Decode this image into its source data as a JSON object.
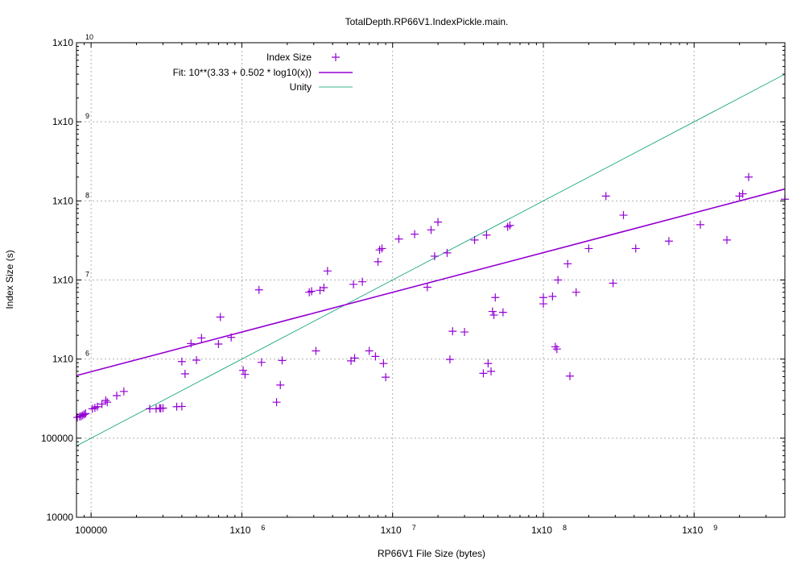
{
  "colors": {
    "data": "#9400d3",
    "fit": "#9400d3",
    "unity": "#009e73",
    "grid": "#b0b0b0",
    "axis": "#000000"
  },
  "chart_data": {
    "type": "scatter",
    "title": "TotalDepth.RP66V1.IndexPickle.main.",
    "xlabel": "RP66V1 File Size (bytes)",
    "ylabel": "Index Size (s)",
    "xscale": "log",
    "yscale": "log",
    "xlim": [
      80000,
      4000000000
    ],
    "ylim": [
      10000,
      10000000000
    ],
    "grid": true,
    "legend_position": "top-left",
    "x_ticks": [
      {
        "value": 100000,
        "label": "100000",
        "exp": ""
      },
      {
        "value": 1000000,
        "label": "1x10",
        "exp": "6"
      },
      {
        "value": 10000000,
        "label": "1x10",
        "exp": "7"
      },
      {
        "value": 100000000,
        "label": "1x10",
        "exp": "8"
      },
      {
        "value": 1000000000,
        "label": "1x10",
        "exp": "9"
      }
    ],
    "y_ticks": [
      {
        "value": 10000,
        "label": "10000",
        "exp": ""
      },
      {
        "value": 100000,
        "label": "100000",
        "exp": ""
      },
      {
        "value": 1000000,
        "label": "1x10",
        "exp": "6"
      },
      {
        "value": 10000000,
        "label": "1x10",
        "exp": "7"
      },
      {
        "value": 100000000,
        "label": "1x10",
        "exp": "8"
      },
      {
        "value": 1000000000,
        "label": "1x10",
        "exp": "9"
      },
      {
        "value": 10000000000,
        "label": "1x10",
        "exp": "10"
      }
    ],
    "legend": [
      {
        "label": "Index Size",
        "kind": "points"
      },
      {
        "label": "Fit: 10**(3.33 + 0.502 * log10(x))",
        "kind": "fit"
      },
      {
        "label": "Unity",
        "kind": "unity"
      }
    ],
    "fit": {
      "intercept": 3.33,
      "slope": 0.502
    },
    "series": [
      {
        "name": "Index Size",
        "points": [
          [
            81000,
            183000
          ],
          [
            84000,
            188000
          ],
          [
            86000,
            190000
          ],
          [
            88000,
            195000
          ],
          [
            90000,
            200000
          ],
          [
            92000,
            205000
          ],
          [
            102000,
            235000
          ],
          [
            106000,
            242000
          ],
          [
            110000,
            250000
          ],
          [
            118000,
            270000
          ],
          [
            125000,
            300000
          ],
          [
            128000,
            285000
          ],
          [
            148000,
            345000
          ],
          [
            165000,
            390000
          ],
          [
            245000,
            235000
          ],
          [
            270000,
            235000
          ],
          [
            285000,
            240000
          ],
          [
            290000,
            238000
          ],
          [
            300000,
            240000
          ],
          [
            370000,
            250000
          ],
          [
            400000,
            252000
          ],
          [
            400000,
            930000
          ],
          [
            420000,
            650000
          ],
          [
            460000,
            1570000
          ],
          [
            500000,
            970000
          ],
          [
            540000,
            1850000
          ],
          [
            700000,
            1550000
          ],
          [
            720000,
            3400000
          ],
          [
            850000,
            1880000
          ],
          [
            1020000,
            720000
          ],
          [
            1050000,
            640000
          ],
          [
            1300000,
            7500000
          ],
          [
            1350000,
            910000
          ],
          [
            1700000,
            285000
          ],
          [
            1800000,
            470000
          ],
          [
            1850000,
            960000
          ],
          [
            2800000,
            7000000
          ],
          [
            2900000,
            7200000
          ],
          [
            3100000,
            1270000
          ],
          [
            3300000,
            7400000
          ],
          [
            3500000,
            8000000
          ],
          [
            3700000,
            13000000
          ],
          [
            5300000,
            950000
          ],
          [
            5600000,
            1030000
          ],
          [
            5500000,
            8800000
          ],
          [
            6300000,
            9500000
          ],
          [
            7000000,
            1270000
          ],
          [
            7700000,
            1080000
          ],
          [
            8000000,
            17000000
          ],
          [
            8200000,
            24000000
          ],
          [
            8500000,
            25000000
          ],
          [
            8700000,
            880000
          ],
          [
            9000000,
            590000
          ],
          [
            11000000,
            33000000
          ],
          [
            14000000,
            38000000
          ],
          [
            17000000,
            8100000
          ],
          [
            18000000,
            43000000
          ],
          [
            19000000,
            20000000
          ],
          [
            20000000,
            54000000
          ],
          [
            23000000,
            22000000
          ],
          [
            24000000,
            990000
          ],
          [
            25000000,
            2250000
          ],
          [
            30000000,
            2200000
          ],
          [
            35000000,
            32000000
          ],
          [
            40000000,
            660000
          ],
          [
            42000000,
            37000000
          ],
          [
            43000000,
            880000
          ],
          [
            45000000,
            700000
          ],
          [
            46000000,
            4000000
          ],
          [
            47000000,
            3600000
          ],
          [
            48000000,
            6000000
          ],
          [
            54000000,
            3900000
          ],
          [
            58000000,
            47000000
          ],
          [
            60000000,
            49000000
          ],
          [
            100000000,
            5000000
          ],
          [
            100000000,
            6000000
          ],
          [
            115000000,
            6200000
          ],
          [
            120000000,
            1430000
          ],
          [
            123000000,
            1340000
          ],
          [
            125000000,
            10000000
          ],
          [
            145000000,
            16000000
          ],
          [
            150000000,
            610000
          ],
          [
            165000000,
            7000000
          ],
          [
            200000000,
            25000000
          ],
          [
            260000000,
            115000000
          ],
          [
            290000000,
            9100000
          ],
          [
            340000000,
            66000000
          ],
          [
            410000000,
            25000000
          ],
          [
            680000000,
            31000000
          ],
          [
            1100000000,
            50000000
          ],
          [
            1650000000,
            32000000
          ],
          [
            2000000000,
            115000000
          ],
          [
            2100000000,
            123000000
          ],
          [
            2300000000,
            200000000
          ],
          [
            4000000000,
            105000000
          ]
        ]
      }
    ]
  }
}
